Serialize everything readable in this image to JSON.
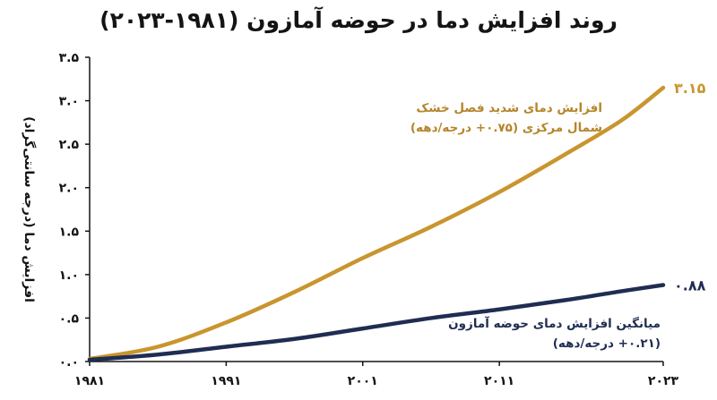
{
  "title": "روند افزایش دما در حوضه آمازون (۱۹۸۱-۲۰۲۳)",
  "chart_data": {
    "type": "line",
    "title": "روند افزایش دما در حوضه آمازون (۱۹۸۱-۲۰۲۳)",
    "ylabel": "افزایش دما (درجه سانتی‌گراد)",
    "xlabel": "",
    "xlim": [
      1981,
      2023
    ],
    "ylim": [
      0,
      3.5
    ],
    "x_ticks": [
      1981,
      1991,
      2001,
      2011,
      2023
    ],
    "x_tick_labels": [
      "۱۹۸۱",
      "۱۹۹۱",
      "۲۰۰۱",
      "۲۰۱۱",
      "۲۰۲۳"
    ],
    "y_ticks": [
      0,
      0.5,
      1,
      1.5,
      2,
      2.5,
      3,
      3.5
    ],
    "y_tick_labels": [
      "۰.۰",
      "۰.۵",
      "۱.۰",
      "۱.۵",
      "۲.۰",
      "۲.۵",
      "۳.۰",
      "۳.۵"
    ],
    "grid": false,
    "x": [
      1981,
      1986,
      1991,
      1996,
      2001,
      2006,
      2011,
      2016,
      2020,
      2023
    ],
    "series": [
      {
        "key": "north",
        "color": "#c9952e",
        "annotation_lines": [
          "افزایش دمای شدید فصل خشک",
          "شمال مرکزی (۰.۷۵+ درجه/دهه)"
        ],
        "end_label": "۳.۱۵",
        "values": [
          0.03,
          0.17,
          0.45,
          0.8,
          1.19,
          1.55,
          1.95,
          2.4,
          2.78,
          3.15
        ]
      },
      {
        "key": "avg",
        "color": "#1f2d52",
        "annotation_lines": [
          "میانگین افزایش دمای حوضه آمازون",
          "(۰.۲۱+ درجه/دهه)"
        ],
        "end_label": "۰.۸۸",
        "values": [
          0.02,
          0.08,
          0.17,
          0.26,
          0.38,
          0.5,
          0.6,
          0.71,
          0.81,
          0.88
        ]
      }
    ]
  }
}
